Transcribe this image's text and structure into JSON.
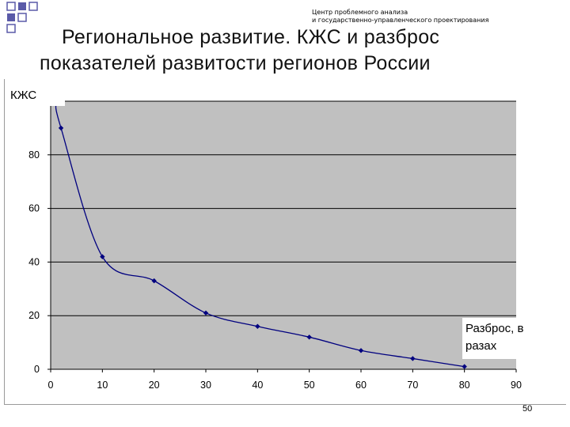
{
  "header": {
    "org_line1": "Центр проблемного анализа",
    "org_line2": "и государственно-управленческого проектирования"
  },
  "slide": {
    "title_line1": "Региональное  развитие.  КЖС  и  разброс",
    "title_line2": "показателей  развитости регионов России",
    "page_number": "50"
  },
  "colors": {
    "plot_background": "#c0c0c0",
    "series_line": "#00007f",
    "gridline": "#000000",
    "decor_squares": "#5a5aa8"
  },
  "chart_data": {
    "type": "line",
    "ylabel": "КЖС",
    "xlabel": "Разброс, в разах",
    "xlim": [
      0,
      90
    ],
    "ylim": [
      0,
      100
    ],
    "xticks": [
      0,
      10,
      20,
      30,
      40,
      50,
      60,
      70,
      80,
      90
    ],
    "yticks": [
      0,
      20,
      40,
      60,
      80,
      100
    ],
    "grid": "horizontal",
    "series": [
      {
        "x": [
          1,
          2,
          10,
          20,
          30,
          40,
          50,
          60,
          70,
          80
        ],
        "y": [
          99,
          90,
          42,
          33,
          21,
          16,
          12,
          7,
          4,
          1
        ]
      }
    ]
  }
}
